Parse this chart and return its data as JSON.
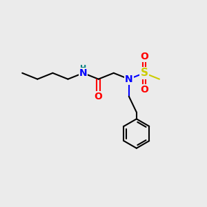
{
  "background_color": "#ebebeb",
  "atom_colors": {
    "C": "#000000",
    "N": "#0000ff",
    "O": "#ff0000",
    "S": "#cccc00",
    "H": "#008080"
  },
  "bond_lw": 1.5,
  "figsize": [
    3.0,
    3.0
  ],
  "dpi": 100,
  "xlim": [
    0,
    10
  ],
  "ylim": [
    0,
    10
  ]
}
